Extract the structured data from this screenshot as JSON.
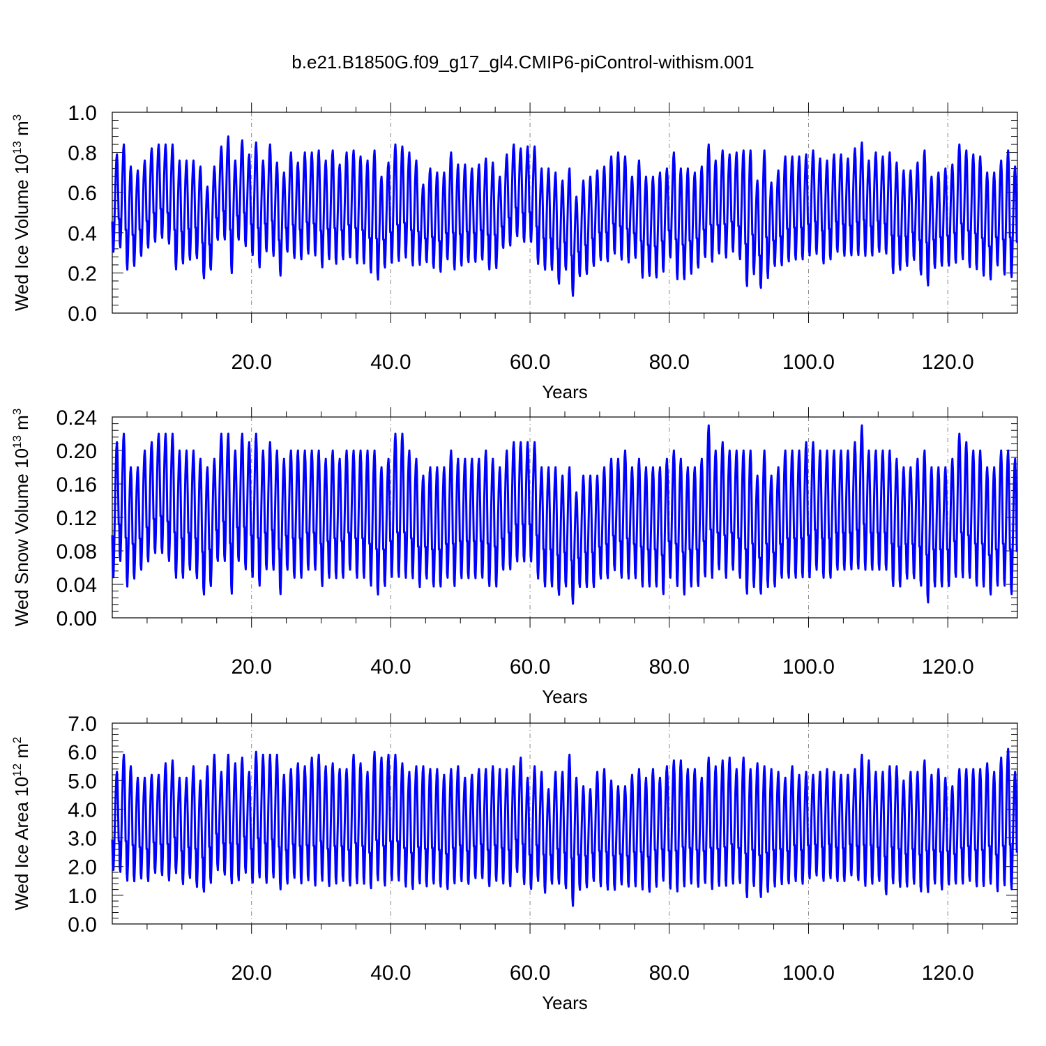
{
  "figure_title": "b.e21.B1850G.f09_g17_gl4.CMIP6-piControl-withism.001",
  "colors": {
    "series": "#0000ff",
    "axes": "#000000",
    "grid": "#888888",
    "background": "#ffffff"
  },
  "chart_data": [
    {
      "type": "line",
      "title": "",
      "ylabel": "Wed Ice Volume 10",
      "ylabel_exp": "13",
      "ylabel_unit": " m",
      "ylabel_unit_exp": "3",
      "xlabel": "Years",
      "xlim": [
        0,
        130
      ],
      "ylim": [
        0.0,
        1.0
      ],
      "yticks": [
        "0.0",
        "0.2",
        "0.4",
        "0.6",
        "0.8",
        "1.0"
      ],
      "ytick_values": [
        0.0,
        0.2,
        0.4,
        0.6,
        0.8,
        1.0
      ],
      "xticks": [
        "20.0",
        "40.0",
        "60.0",
        "80.0",
        "100.0",
        "120.0"
      ],
      "xtick_values": [
        20,
        40,
        60,
        80,
        100,
        120
      ],
      "grid": "vertical dashed at major x ticks",
      "series": [
        {
          "color": "#0000ff",
          "sampling": "monthly, seasonal cycle (min ~month 2, max ~month 9)",
          "annual_max": [
            0.79,
            0.84,
            0.73,
            0.71,
            0.76,
            0.82,
            0.84,
            0.84,
            0.84,
            0.76,
            0.76,
            0.76,
            0.73,
            0.63,
            0.73,
            0.83,
            0.88,
            0.76,
            0.86,
            0.79,
            0.85,
            0.76,
            0.84,
            0.75,
            0.7,
            0.8,
            0.75,
            0.8,
            0.8,
            0.81,
            0.76,
            0.81,
            0.74,
            0.8,
            0.81,
            0.78,
            0.76,
            0.81,
            0.68,
            0.75,
            0.84,
            0.83,
            0.8,
            0.76,
            0.64,
            0.72,
            0.7,
            0.7,
            0.8,
            0.74,
            0.74,
            0.72,
            0.74,
            0.77,
            0.75,
            0.68,
            0.79,
            0.84,
            0.82,
            0.83,
            0.83,
            0.72,
            0.72,
            0.7,
            0.66,
            0.72,
            0.58,
            0.66,
            0.68,
            0.71,
            0.73,
            0.78,
            0.8,
            0.78,
            0.68,
            0.76,
            0.68,
            0.68,
            0.7,
            0.72,
            0.8,
            0.72,
            0.72,
            0.7,
            0.73,
            0.84,
            0.76,
            0.81,
            0.79,
            0.8,
            0.81,
            0.81,
            0.66,
            0.81,
            0.65,
            0.71,
            0.78,
            0.78,
            0.78,
            0.79,
            0.81,
            0.77,
            0.76,
            0.79,
            0.79,
            0.77,
            0.82,
            0.85,
            0.76,
            0.8,
            0.78,
            0.8,
            0.75,
            0.71,
            0.71,
            0.75,
            0.81,
            0.68,
            0.7,
            0.72,
            0.74,
            0.84,
            0.81,
            0.79,
            0.78,
            0.7,
            0.7,
            0.76,
            0.81,
            0.73
          ],
          "annual_min": [
            0.28,
            0.3,
            0.19,
            0.21,
            0.26,
            0.3,
            0.33,
            0.35,
            0.32,
            0.19,
            0.22,
            0.24,
            0.25,
            0.15,
            0.19,
            0.34,
            0.34,
            0.17,
            0.34,
            0.31,
            0.26,
            0.2,
            0.28,
            0.26,
            0.16,
            0.28,
            0.25,
            0.24,
            0.27,
            0.26,
            0.2,
            0.24,
            0.22,
            0.24,
            0.25,
            0.22,
            0.22,
            0.17,
            0.14,
            0.2,
            0.22,
            0.23,
            0.25,
            0.21,
            0.22,
            0.23,
            0.2,
            0.18,
            0.24,
            0.19,
            0.21,
            0.23,
            0.23,
            0.24,
            0.19,
            0.2,
            0.3,
            0.31,
            0.36,
            0.33,
            0.33,
            0.22,
            0.19,
            0.19,
            0.12,
            0.19,
            0.06,
            0.16,
            0.17,
            0.21,
            0.24,
            0.23,
            0.27,
            0.24,
            0.23,
            0.25,
            0.15,
            0.16,
            0.15,
            0.18,
            0.25,
            0.14,
            0.14,
            0.17,
            0.2,
            0.25,
            0.23,
            0.27,
            0.25,
            0.28,
            0.24,
            0.1,
            0.17,
            0.09,
            0.15,
            0.21,
            0.21,
            0.23,
            0.24,
            0.24,
            0.26,
            0.27,
            0.22,
            0.24,
            0.28,
            0.26,
            0.26,
            0.26,
            0.26,
            0.26,
            0.28,
            0.27,
            0.17,
            0.19,
            0.21,
            0.24,
            0.16,
            0.11,
            0.2,
            0.21,
            0.21,
            0.22,
            0.24,
            0.2,
            0.19,
            0.16,
            0.14,
            0.21,
            0.16,
            0.15
          ]
        }
      ]
    },
    {
      "type": "line",
      "title": "",
      "ylabel": "Wed Snow Volume 10",
      "ylabel_exp": "13",
      "ylabel_unit": " m",
      "ylabel_unit_exp": "3",
      "xlabel": "Years",
      "xlim": [
        0,
        130
      ],
      "ylim": [
        0.0,
        0.24
      ],
      "yticks": [
        "0.00",
        "0.04",
        "0.08",
        "0.12",
        "0.16",
        "0.20",
        "0.24"
      ],
      "ytick_values": [
        0.0,
        0.04,
        0.08,
        0.12,
        0.16,
        0.2,
        0.24
      ],
      "xticks": [
        "20.0",
        "40.0",
        "60.0",
        "80.0",
        "100.0",
        "120.0"
      ],
      "xtick_values": [
        20,
        40,
        60,
        80,
        100,
        120
      ],
      "grid": "vertical dashed at major x ticks",
      "series": [
        {
          "color": "#0000ff",
          "sampling": "monthly, seasonal cycle (min ~month 2, max ~month 9)",
          "annual_max": [
            0.21,
            0.22,
            0.18,
            0.18,
            0.2,
            0.21,
            0.22,
            0.22,
            0.22,
            0.2,
            0.2,
            0.2,
            0.19,
            0.18,
            0.19,
            0.22,
            0.22,
            0.2,
            0.22,
            0.21,
            0.22,
            0.2,
            0.21,
            0.2,
            0.19,
            0.2,
            0.2,
            0.2,
            0.2,
            0.2,
            0.19,
            0.2,
            0.19,
            0.2,
            0.2,
            0.2,
            0.2,
            0.2,
            0.18,
            0.19,
            0.22,
            0.22,
            0.2,
            0.19,
            0.17,
            0.18,
            0.18,
            0.18,
            0.2,
            0.19,
            0.19,
            0.19,
            0.19,
            0.2,
            0.19,
            0.18,
            0.2,
            0.21,
            0.21,
            0.21,
            0.21,
            0.18,
            0.18,
            0.18,
            0.17,
            0.18,
            0.15,
            0.17,
            0.17,
            0.17,
            0.18,
            0.19,
            0.19,
            0.2,
            0.18,
            0.19,
            0.18,
            0.18,
            0.18,
            0.19,
            0.2,
            0.19,
            0.18,
            0.18,
            0.19,
            0.23,
            0.2,
            0.21,
            0.2,
            0.2,
            0.2,
            0.2,
            0.17,
            0.2,
            0.17,
            0.18,
            0.2,
            0.2,
            0.2,
            0.21,
            0.21,
            0.2,
            0.2,
            0.2,
            0.2,
            0.2,
            0.21,
            0.23,
            0.2,
            0.2,
            0.2,
            0.2,
            0.19,
            0.18,
            0.18,
            0.19,
            0.2,
            0.18,
            0.18,
            0.18,
            0.19,
            0.22,
            0.21,
            0.2,
            0.2,
            0.18,
            0.18,
            0.2,
            0.2,
            0.19
          ],
          "annual_min": [
            0.04,
            0.06,
            0.03,
            0.04,
            0.05,
            0.06,
            0.07,
            0.07,
            0.06,
            0.04,
            0.04,
            0.05,
            0.04,
            0.02,
            0.03,
            0.06,
            0.06,
            0.02,
            0.06,
            0.05,
            0.04,
            0.03,
            0.05,
            0.05,
            0.02,
            0.05,
            0.04,
            0.04,
            0.05,
            0.05,
            0.03,
            0.04,
            0.04,
            0.04,
            0.05,
            0.04,
            0.04,
            0.03,
            0.02,
            0.03,
            0.04,
            0.04,
            0.04,
            0.04,
            0.03,
            0.04,
            0.03,
            0.03,
            0.04,
            0.03,
            0.04,
            0.04,
            0.04,
            0.04,
            0.03,
            0.03,
            0.05,
            0.05,
            0.06,
            0.06,
            0.06,
            0.04,
            0.03,
            0.03,
            0.02,
            0.03,
            0.01,
            0.03,
            0.03,
            0.03,
            0.04,
            0.04,
            0.05,
            0.04,
            0.04,
            0.04,
            0.03,
            0.03,
            0.03,
            0.02,
            0.04,
            0.03,
            0.02,
            0.03,
            0.03,
            0.04,
            0.04,
            0.05,
            0.04,
            0.05,
            0.04,
            0.02,
            0.03,
            0.02,
            0.03,
            0.03,
            0.04,
            0.04,
            0.04,
            0.04,
            0.04,
            0.05,
            0.04,
            0.04,
            0.05,
            0.05,
            0.05,
            0.05,
            0.05,
            0.05,
            0.05,
            0.05,
            0.03,
            0.03,
            0.04,
            0.04,
            0.03,
            0.01,
            0.03,
            0.03,
            0.03,
            0.04,
            0.04,
            0.04,
            0.03,
            0.03,
            0.02,
            0.03,
            0.03,
            0.02
          ]
        }
      ]
    },
    {
      "type": "line",
      "title": "",
      "ylabel": "Wed Ice Area 10",
      "ylabel_exp": "12",
      "ylabel_unit": " m",
      "ylabel_unit_exp": "2",
      "xlabel": "Years",
      "xlim": [
        0,
        130
      ],
      "ylim": [
        0.0,
        7.0
      ],
      "yticks": [
        "0.0",
        "1.0",
        "2.0",
        "3.0",
        "4.0",
        "5.0",
        "6.0",
        "7.0"
      ],
      "ytick_values": [
        0,
        1,
        2,
        3,
        4,
        5,
        6,
        7
      ],
      "xticks": [
        "20.0",
        "40.0",
        "60.0",
        "80.0",
        "100.0",
        "120.0"
      ],
      "xtick_values": [
        20,
        40,
        60,
        80,
        100,
        120
      ],
      "grid": "vertical dashed at major x ticks",
      "series": [
        {
          "color": "#0000ff",
          "sampling": "monthly, seasonal cycle (min ~month 2, max ~month 9)",
          "annual_max": [
            5.3,
            5.9,
            5.5,
            5.1,
            5.1,
            5.2,
            5.2,
            5.6,
            5.7,
            5.1,
            5.1,
            5.5,
            5.0,
            5.5,
            5.9,
            5.3,
            5.9,
            5.6,
            5.8,
            5.3,
            6.0,
            5.9,
            5.9,
            5.9,
            5.2,
            5.4,
            5.6,
            5.5,
            5.8,
            5.9,
            5.5,
            5.6,
            5.4,
            5.4,
            5.9,
            5.6,
            5.3,
            6.0,
            5.8,
            5.9,
            5.9,
            5.6,
            5.3,
            5.5,
            5.5,
            5.4,
            5.4,
            5.2,
            5.4,
            5.5,
            5.1,
            5.2,
            5.4,
            5.4,
            5.5,
            5.4,
            5.4,
            5.5,
            5.8,
            5.1,
            5.5,
            5.3,
            4.7,
            5.3,
            5.3,
            5.9,
            5.1,
            4.8,
            4.7,
            5.3,
            5.4,
            5.0,
            4.8,
            4.8,
            5.2,
            5.4,
            5.1,
            5.4,
            5.1,
            5.5,
            5.7,
            5.7,
            5.4,
            5.4,
            5.1,
            5.8,
            5.5,
            5.7,
            5.8,
            5.4,
            5.8,
            5.4,
            5.6,
            5.5,
            5.4,
            5.3,
            5.1,
            5.5,
            5.2,
            5.3,
            5.2,
            5.3,
            5.4,
            5.3,
            5.2,
            5.2,
            5.4,
            5.9,
            5.7,
            5.3,
            5.3,
            5.5,
            5.5,
            5.0,
            5.3,
            5.3,
            5.7,
            5.2,
            5.4,
            5.1,
            4.8,
            5.4,
            5.4,
            5.4,
            5.4,
            5.6,
            5.3,
            5.8,
            6.1,
            5.3
          ],
          "annual_min": [
            1.7,
            1.6,
            1.3,
            1.3,
            1.4,
            1.3,
            1.6,
            1.5,
            1.3,
            1.6,
            1.2,
            1.4,
            1.1,
            0.9,
            1.2,
            1.7,
            1.5,
            1.2,
            1.3,
            1.6,
            1.2,
            1.4,
            1.2,
            1.4,
            1.0,
            1.2,
            1.4,
            1.2,
            1.3,
            1.1,
            1.3,
            1.1,
            1.2,
            1.3,
            1.1,
            1.2,
            1.2,
            1.0,
            1.3,
            1.1,
            1.3,
            1.3,
            1.1,
            1.0,
            1.2,
            1.1,
            1.2,
            1.1,
            1.0,
            1.2,
            1.3,
            1.2,
            1.4,
            1.4,
            1.1,
            1.3,
            1.2,
            1.1,
            1.6,
            1.2,
            1.0,
            1.3,
            0.9,
            1.2,
            1.2,
            1.0,
            0.4,
            1.0,
            1.1,
            1.3,
            1.1,
            1.0,
            1.0,
            1.2,
            1.1,
            1.1,
            1.0,
            0.9,
            1.1,
            1.3,
            1.0,
            0.9,
            1.1,
            1.2,
            1.1,
            1.2,
            1.0,
            1.1,
            1.1,
            1.2,
            1.2,
            0.7,
            1.1,
            0.7,
            0.9,
            1.1,
            1.2,
            1.2,
            1.3,
            1.2,
            1.4,
            1.5,
            1.3,
            1.4,
            1.3,
            1.3,
            1.5,
            1.3,
            1.1,
            1.2,
            1.3,
            0.8,
            1.2,
            1.1,
            1.1,
            1.2,
            0.9,
            0.9,
            1.2,
            1.0,
            1.2,
            1.2,
            1.2,
            1.3,
            1.1,
            1.1,
            1.2,
            0.9,
            1.1,
            1.0
          ]
        }
      ]
    }
  ]
}
